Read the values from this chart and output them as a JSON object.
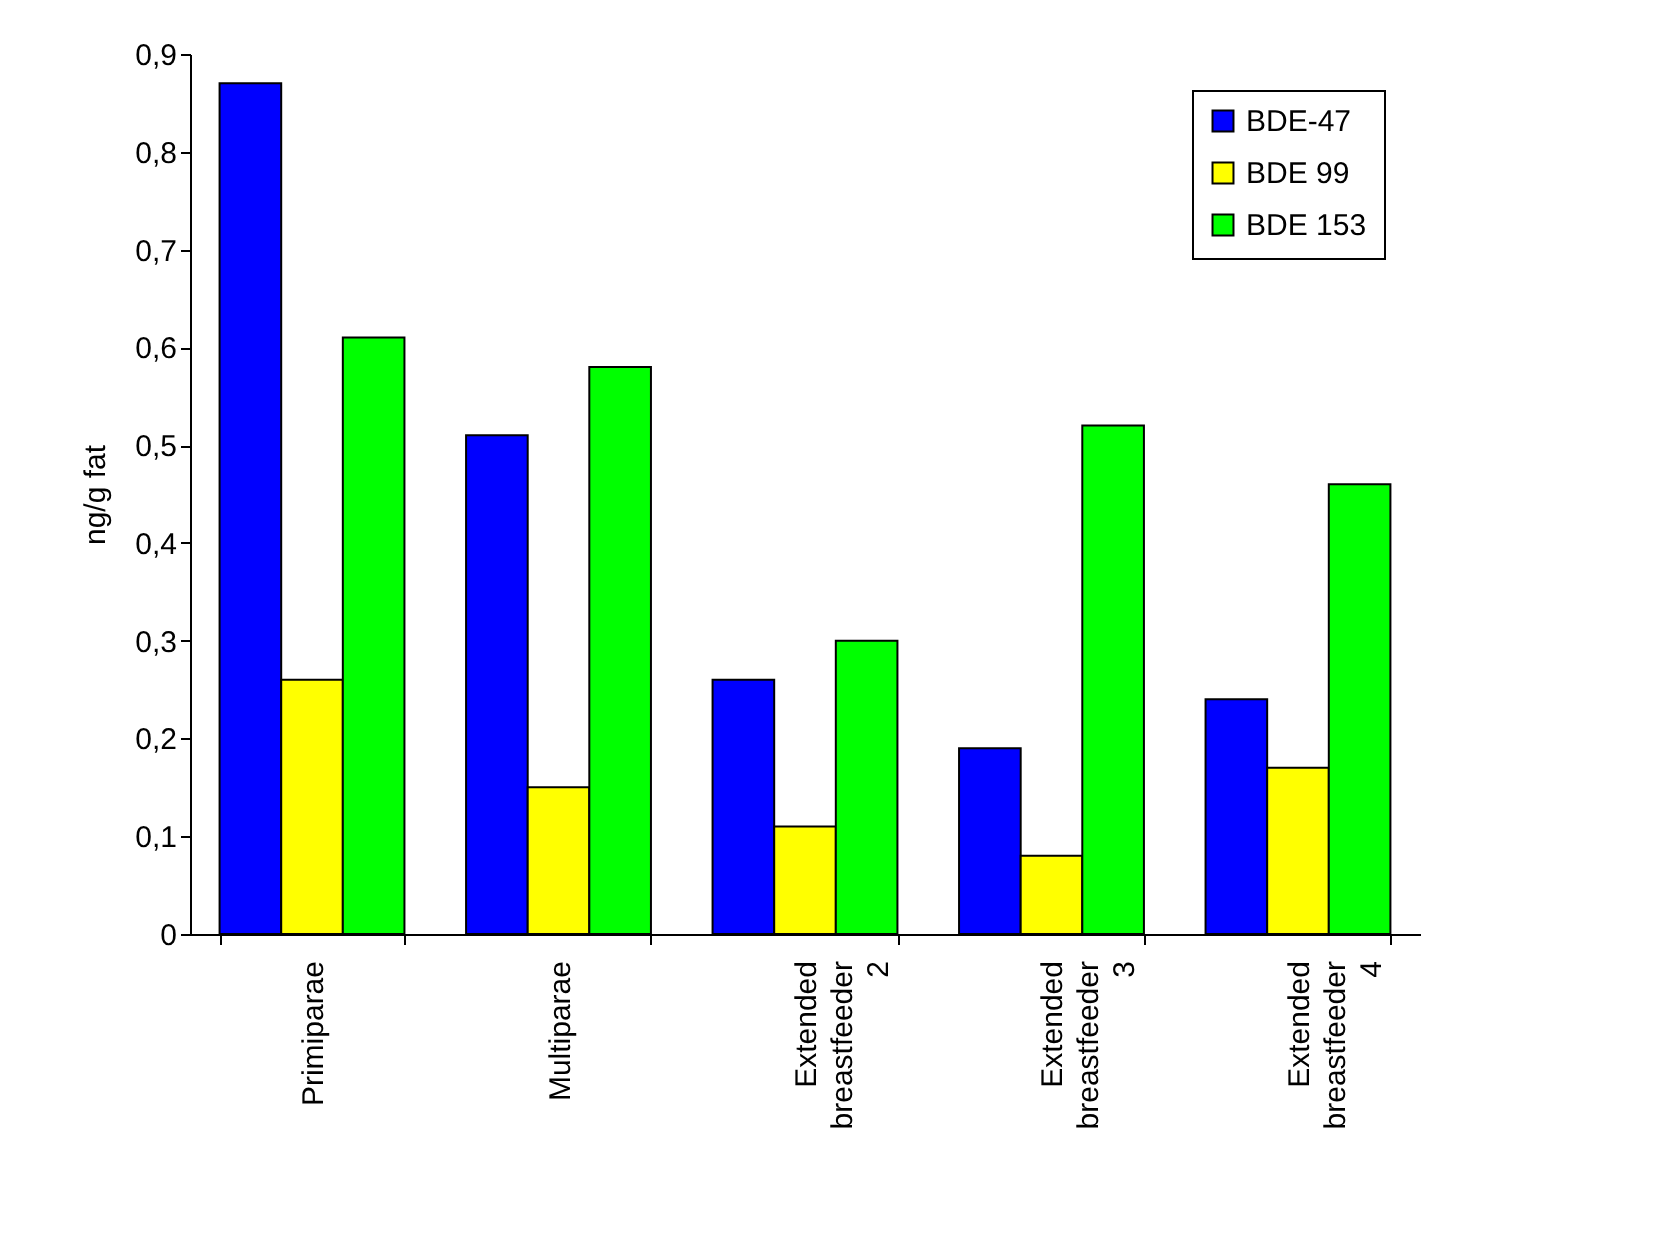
{
  "chart_data": {
    "type": "bar",
    "ylabel": "ng/g fat",
    "categories": [
      "Primiparae",
      "Multiparae",
      "Extended breastfeeder 2",
      "Extended breastfeeder 3",
      "Extended breastfeeder 4"
    ],
    "series": [
      {
        "name": "BDE-47",
        "color": "#0000ff",
        "values": [
          0.87,
          0.51,
          0.26,
          0.19,
          0.24
        ]
      },
      {
        "name": "BDE 99",
        "color": "#ffff00",
        "values": [
          0.26,
          0.15,
          0.11,
          0.08,
          0.17
        ]
      },
      {
        "name": "BDE 153",
        "color": "#00ff00",
        "values": [
          0.61,
          0.58,
          0.3,
          0.52,
          0.46
        ]
      }
    ],
    "ylim": [
      0,
      0.9
    ],
    "yticks": [
      0,
      {
        "value": 0.1,
        "label": "0,1"
      },
      {
        "value": 0.2,
        "label": "0,2"
      },
      {
        "value": 0.3,
        "label": "0,3"
      },
      {
        "value": 0.4,
        "label": "0,4"
      },
      {
        "value": 0.5,
        "label": "0,5"
      },
      {
        "value": 0.6,
        "label": "0,6"
      },
      {
        "value": 0.7,
        "label": "0,7"
      },
      {
        "value": 0.8,
        "label": "0,8"
      },
      {
        "value": 0.9,
        "label": "0,9"
      }
    ],
    "grid": false,
    "legend": "top right"
  }
}
